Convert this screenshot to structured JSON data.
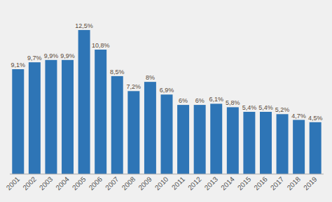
{
  "chart_data": {
    "type": "bar",
    "categories": [
      "2001",
      "2002",
      "2003",
      "2004",
      "2005",
      "2006",
      "2007",
      "2008",
      "2009",
      "2010",
      "2011",
      "2012",
      "2013",
      "2014",
      "2015",
      "2016",
      "2017",
      "2018",
      "2019"
    ],
    "values": [
      9.1,
      9.7,
      9.9,
      9.9,
      12.5,
      10.8,
      8.5,
      7.2,
      8.0,
      6.9,
      6.0,
      6.0,
      6.1,
      5.8,
      5.4,
      5.4,
      5.2,
      4.7,
      4.5
    ],
    "value_labels": [
      "9,1%",
      "9,7%",
      "9,9%",
      "9,9%",
      "12,5%",
      "10,8%",
      "8,5%",
      "7,2%",
      "8%",
      "6,9%",
      "6%",
      "6%",
      "6,1%",
      "5,8%",
      "5,4%",
      "5,4%",
      "5,2%",
      "4,7%",
      "4,5%"
    ],
    "color": "#2e75b6",
    "ylim": [
      0,
      14.5
    ],
    "data_labels": true,
    "tick_labels": "x"
  }
}
